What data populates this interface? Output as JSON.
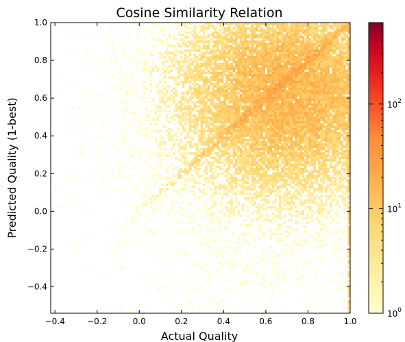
{
  "chart_data": {
    "type": "heatmap",
    "title": "Cosine Similarity Relation",
    "xlabel": "Actual Quality",
    "ylabel": "Predicted Quality (1-best)",
    "xlim": [
      -0.42,
      1.0
    ],
    "ylim": [
      -0.54,
      1.0
    ],
    "x_ticks": [
      -0.4,
      -0.2,
      0.0,
      0.2,
      0.4,
      0.6,
      0.8,
      1.0
    ],
    "x_tick_labels": [
      "−0.4",
      "−0.2",
      "0.0",
      "0.2",
      "0.4",
      "0.6",
      "0.8",
      "1.0"
    ],
    "y_ticks": [
      -0.4,
      -0.2,
      0.0,
      0.2,
      0.4,
      0.6,
      0.8,
      1.0
    ],
    "y_tick_labels": [
      "−0.4",
      "−0.2",
      "0.0",
      "0.2",
      "0.4",
      "0.6",
      "0.8",
      "1.0"
    ],
    "grid": false,
    "colormap": "YlOrRd",
    "colorbar": {
      "scale": "log",
      "range": [
        1,
        600
      ],
      "ticks": [
        1,
        10,
        100
      ],
      "tick_labels": [
        "10",
        "10",
        "10"
      ],
      "tick_exponents": [
        "0",
        "1",
        "2"
      ]
    },
    "bins": 130,
    "density_description": "counts concentrated along diagonal y=x, densest in 0.5-0.95 region, heavy column at x=1.0"
  }
}
